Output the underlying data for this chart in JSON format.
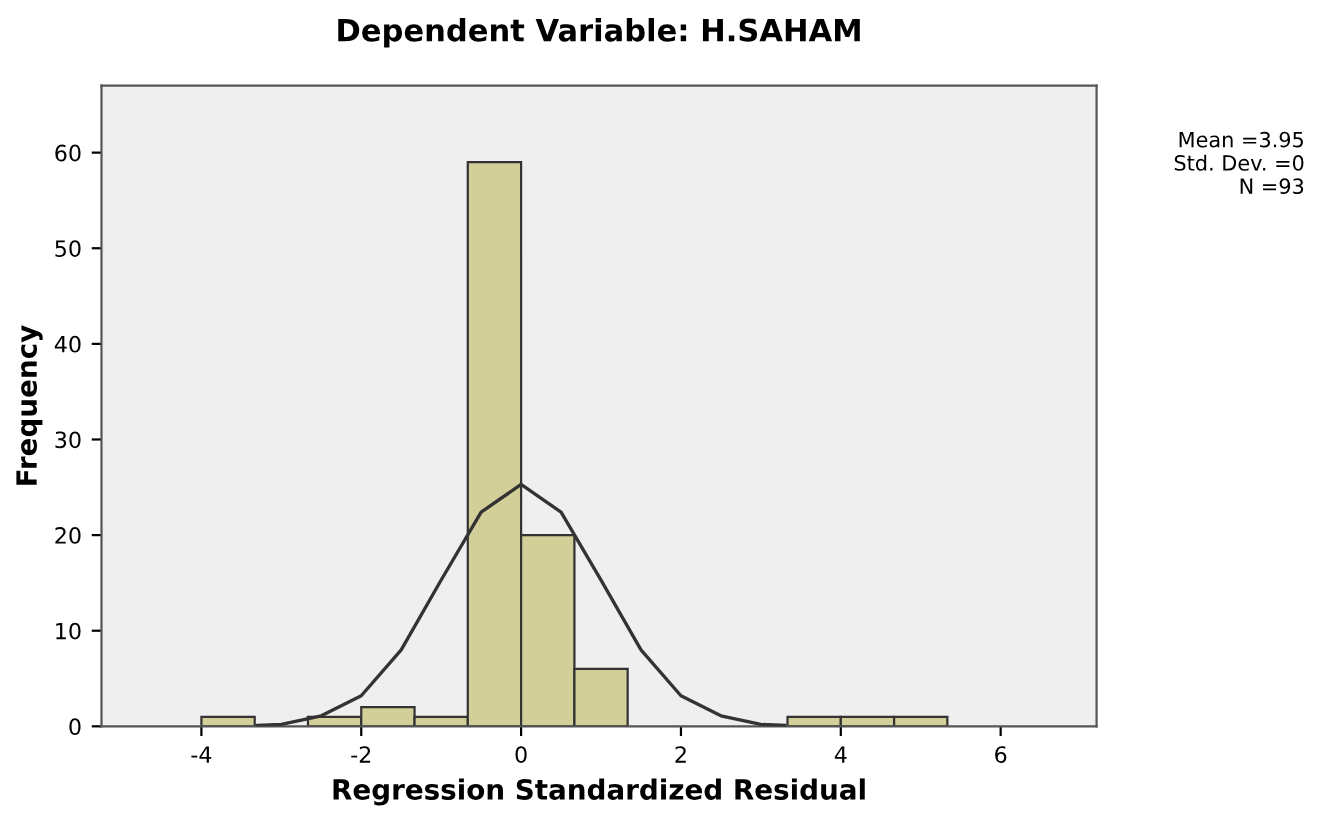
{
  "chart_data": {
    "type": "histogram",
    "title": "Dependent Variable: H.SAHAM",
    "xlabel": "Regression Standardized Residual",
    "ylabel": "Frequency",
    "series": [
      {
        "color": "#d3cf98",
        "bins": [
          -4,
          -3.333,
          -2.667,
          -2,
          -1.333,
          -0.667,
          0,
          0.667,
          1.333,
          2,
          2.667,
          3.333,
          4,
          4.667,
          5.333
        ],
        "values": [
          1,
          0,
          1,
          2,
          1,
          59,
          20,
          6,
          0,
          0,
          0,
          1,
          1,
          1
        ]
      },
      {
        "type": "line",
        "color": "#333333",
        "x": [
          -3.3,
          -3,
          -2.5,
          -2,
          -1.5,
          -1,
          -0.5,
          0,
          0.5,
          1,
          1.5,
          2,
          2.5,
          3,
          3.3
        ],
        "values": [
          0.1,
          0.2,
          1.1,
          3.2,
          8,
          15.3,
          22.4,
          25.3,
          22.4,
          15.3,
          8,
          3.2,
          1.1,
          0.2,
          0.1
        ]
      }
    ],
    "xlim": [
      -5.25,
      7.2
    ],
    "xticks": [
      -4,
      -2,
      0,
      2,
      4,
      6
    ],
    "ylim": [
      0,
      67
    ],
    "yticks": [
      0,
      10,
      20,
      30,
      40,
      50,
      60
    ],
    "grid": false,
    "annotations": [
      "Mean =3.95",
      "Std. Dev. =0",
      "N =93"
    ]
  }
}
